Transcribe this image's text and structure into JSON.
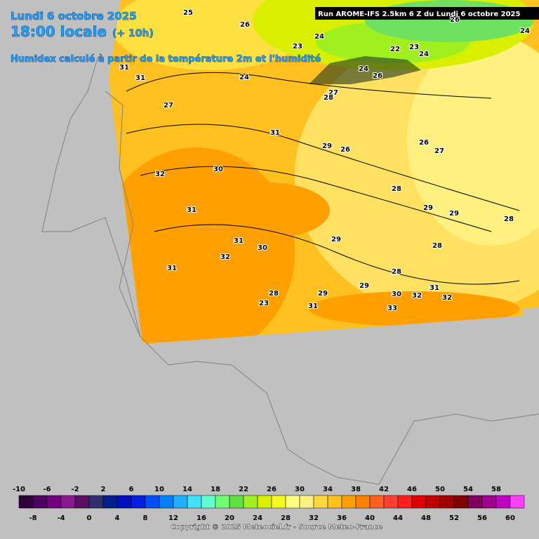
{
  "header": {
    "date": "Lundi 6 octobre 2025",
    "time": "18:00 locale",
    "lead": "(+ 10h)",
    "subtitle": "Humidex calculé à partir de la température 2m et l'humidité",
    "run": "Run AROME-IFS 2.5km 6 Z du Lundi 6 octobre 2025"
  },
  "map_labels": [
    25,
    26,
    24,
    23,
    22,
    23,
    24,
    24,
    26,
    31,
    31,
    24,
    24,
    26,
    27,
    28,
    27,
    31,
    29,
    26,
    26,
    27,
    32,
    30,
    28,
    31,
    29,
    29,
    28,
    31,
    30,
    29,
    28,
    32,
    31,
    28,
    29,
    31,
    28,
    29,
    30,
    32,
    32,
    23,
    31,
    33
  ],
  "legend": {
    "values": [
      -10,
      -8,
      -6,
      -4,
      -2,
      0,
      2,
      4,
      6,
      8,
      10,
      12,
      14,
      16,
      18,
      20,
      22,
      24,
      26,
      28,
      30,
      32,
      34,
      36,
      38,
      40,
      42,
      44,
      46,
      48,
      50,
      52,
      54,
      56,
      58,
      60
    ],
    "colors": [
      "#30003a",
      "#500060",
      "#720080",
      "#8a1890",
      "#5a1060",
      "#303070",
      "#002090",
      "#0010c0",
      "#0020e0",
      "#0050ff",
      "#0080ff",
      "#20b0ff",
      "#40e0ff",
      "#60ffd0",
      "#70ff70",
      "#60e040",
      "#a0f020",
      "#d8f000",
      "#f8f820",
      "#ffff80",
      "#fff080",
      "#ffd840",
      "#ffc020",
      "#ffa000",
      "#ff8000",
      "#ff6020",
      "#ff4030",
      "#ff2020",
      "#e00000",
      "#c00000",
      "#a00000",
      "#800000",
      "#800060",
      "#a00090",
      "#c000c0",
      "#ff40ff"
    ]
  },
  "footer": "Copyright © 2025 Meteociel.fr - Source Meteo-France"
}
